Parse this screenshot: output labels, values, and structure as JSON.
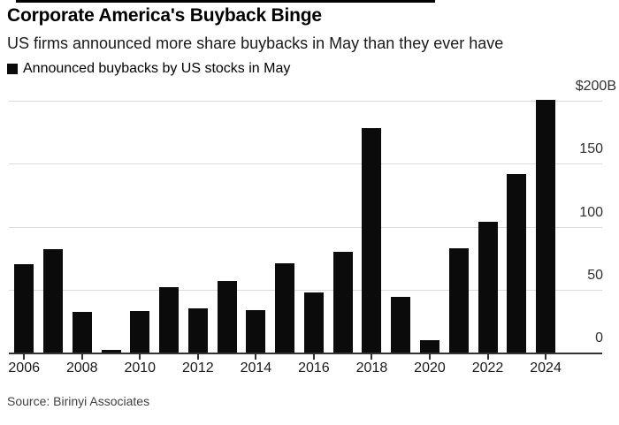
{
  "page": {
    "title": "Corporate America's Buyback Binge",
    "subtitle": "US firms announced more share buybacks in May than they ever have",
    "source": "Source: Birinyi Associates"
  },
  "legend": {
    "label": "Announced buybacks by US stocks in May",
    "swatch_color": "#0b0b0b"
  },
  "chart_data": {
    "type": "bar",
    "title": "Corporate America's Buyback Binge",
    "subtitle": "US firms announced more share buybacks in May than they ever have",
    "legend_entries": [
      "Announced buybacks by US stocks in May"
    ],
    "categories": [
      2006,
      2007,
      2008,
      2009,
      2010,
      2011,
      2012,
      2013,
      2014,
      2015,
      2016,
      2017,
      2018,
      2019,
      2020,
      2021,
      2022,
      2023,
      2024
    ],
    "values": [
      70,
      82,
      32,
      2,
      33,
      52,
      35,
      57,
      34,
      71,
      48,
      80,
      178,
      44,
      10,
      83,
      104,
      142,
      201
    ],
    "unit": "billions of US dollars",
    "ylim": [
      0,
      200
    ],
    "yticks": [
      0,
      50,
      100,
      150,
      200
    ],
    "ytick_labels": [
      "0",
      "50",
      "100",
      "150",
      "$200B"
    ],
    "xtick_labels": [
      "2006",
      "2008",
      "2010",
      "2012",
      "2014",
      "2016",
      "2018",
      "2020",
      "2022",
      "2024"
    ],
    "grid": "horizontal",
    "y_axis_side": "right",
    "legend_position": "top-left",
    "bar_color": "#0b0b0b",
    "gridline_color": "#dbdbdb",
    "axis_color": "#333333",
    "source": "Source: Birinyi Associates"
  }
}
